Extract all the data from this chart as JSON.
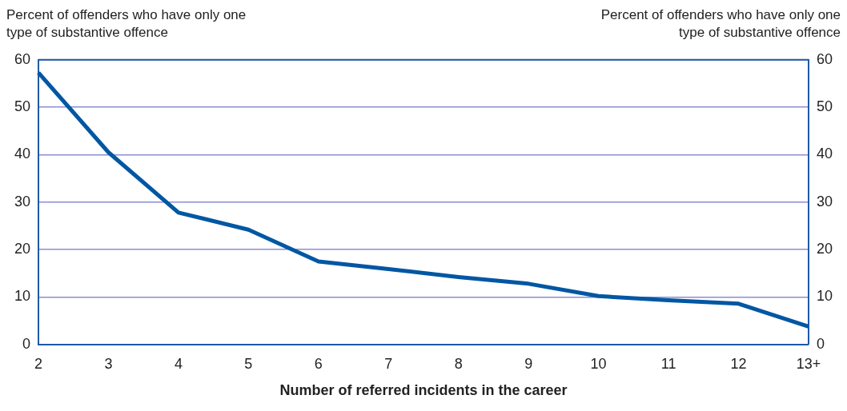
{
  "chart_data": {
    "type": "line",
    "ylabel": "Percent of offenders who have only one type of substantive offence",
    "y2label": "Percent of offenders who have only one type of substantive offence",
    "xlabel": "Number of referred incidents in the career",
    "categories": [
      "2",
      "3",
      "4",
      "5",
      "6",
      "7",
      "8",
      "9",
      "10",
      "11",
      "12",
      "13+"
    ],
    "series": [
      {
        "color": "#0057a3",
        "values": [
          57.3,
          40.5,
          27.8,
          24.2,
          17.5,
          15.9,
          14.2,
          12.8,
          10.2,
          9.3,
          8.6,
          3.8
        ]
      }
    ],
    "ylim": [
      0,
      60
    ],
    "yticks": [
      0,
      10,
      20,
      30,
      40,
      50,
      60
    ],
    "y2lim": [
      0,
      60
    ],
    "y2ticks": [
      0,
      10,
      20,
      30,
      40,
      50,
      60
    ],
    "grid": "y",
    "legend": false,
    "marker": "none",
    "line_style": "solid"
  }
}
